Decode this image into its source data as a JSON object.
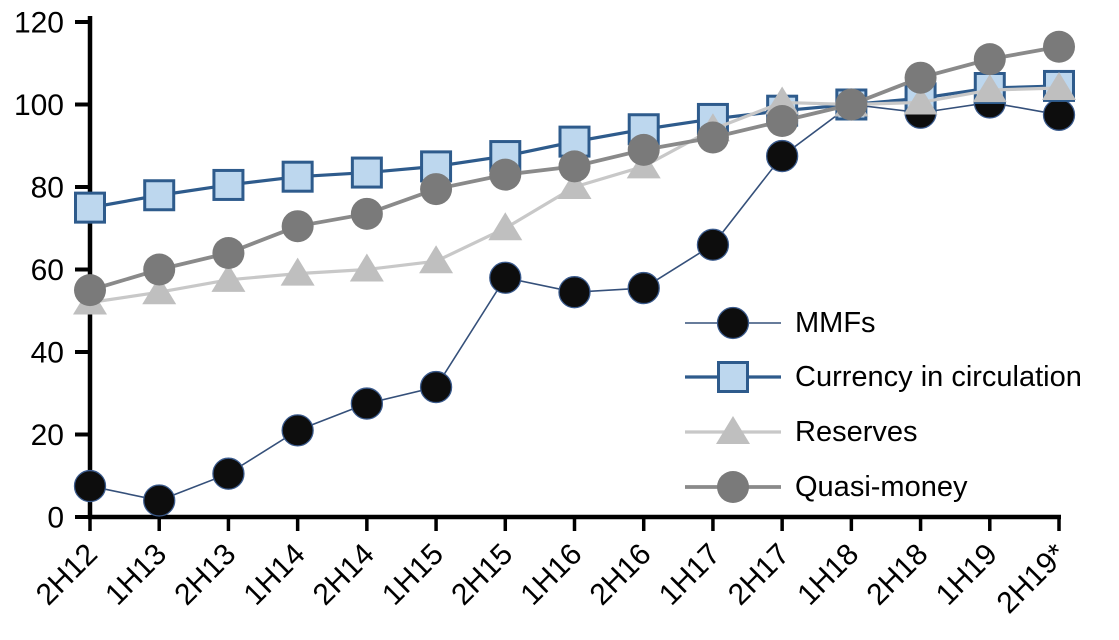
{
  "chart_data": {
    "type": "line",
    "title": "",
    "xlabel": "",
    "ylabel": "",
    "ylim": [
      0,
      120
    ],
    "yticks": [
      0,
      20,
      40,
      60,
      80,
      100,
      120
    ],
    "grid": false,
    "legend_position": "inside-right",
    "categories": [
      "2H12",
      "1H13",
      "2H13",
      "1H14",
      "2H14",
      "1H15",
      "2H15",
      "1H16",
      "2H16",
      "1H17",
      "2H17",
      "1H18",
      "2H18",
      "1H19",
      "2H19*"
    ],
    "series": [
      {
        "name": "MMFs",
        "marker": "circle",
        "marker_fill": "#0d0d0d",
        "marker_stroke": "#3a5a8c",
        "marker_radius": 15.5,
        "line_color": "#35507a",
        "line_width": 1.6,
        "values": [
          7.5,
          4,
          10.5,
          21,
          27.5,
          31.5,
          58,
          54.5,
          55.5,
          66,
          87.5,
          100,
          98,
          100.5,
          97.5
        ]
      },
      {
        "name": "Currency in circulation",
        "marker": "square",
        "marker_fill": "#bdd7ee",
        "marker_stroke": "#2e5b8c",
        "marker_radius": 14.5,
        "line_color": "#2e5b8c",
        "line_width": 3.2,
        "values": [
          75,
          78,
          80.5,
          82.5,
          83.5,
          85,
          87.5,
          91,
          94,
          96.5,
          98.5,
          100,
          101.5,
          104,
          104.5
        ]
      },
      {
        "name": "Reserves",
        "marker": "triangle",
        "marker_fill": "#bfbfbf",
        "marker_stroke": "none",
        "marker_radius": 17,
        "line_color": "#c8c8c8",
        "line_width": 3.2,
        "values": [
          52,
          54.5,
          57.5,
          59,
          60,
          62,
          70,
          80,
          85,
          94,
          100.5,
          100,
          100.5,
          103.5,
          104
        ]
      },
      {
        "name": "Quasi-money",
        "marker": "circle",
        "marker_fill": "#7a7a7a",
        "marker_stroke": "none",
        "marker_radius": 16,
        "line_color": "#8a8a8a",
        "line_width": 3.8,
        "values": [
          55,
          60,
          64,
          70.5,
          73.5,
          79.5,
          83,
          85,
          89,
          92,
          96,
          100,
          106.5,
          111,
          114
        ]
      }
    ],
    "axis_color": "#000000"
  }
}
